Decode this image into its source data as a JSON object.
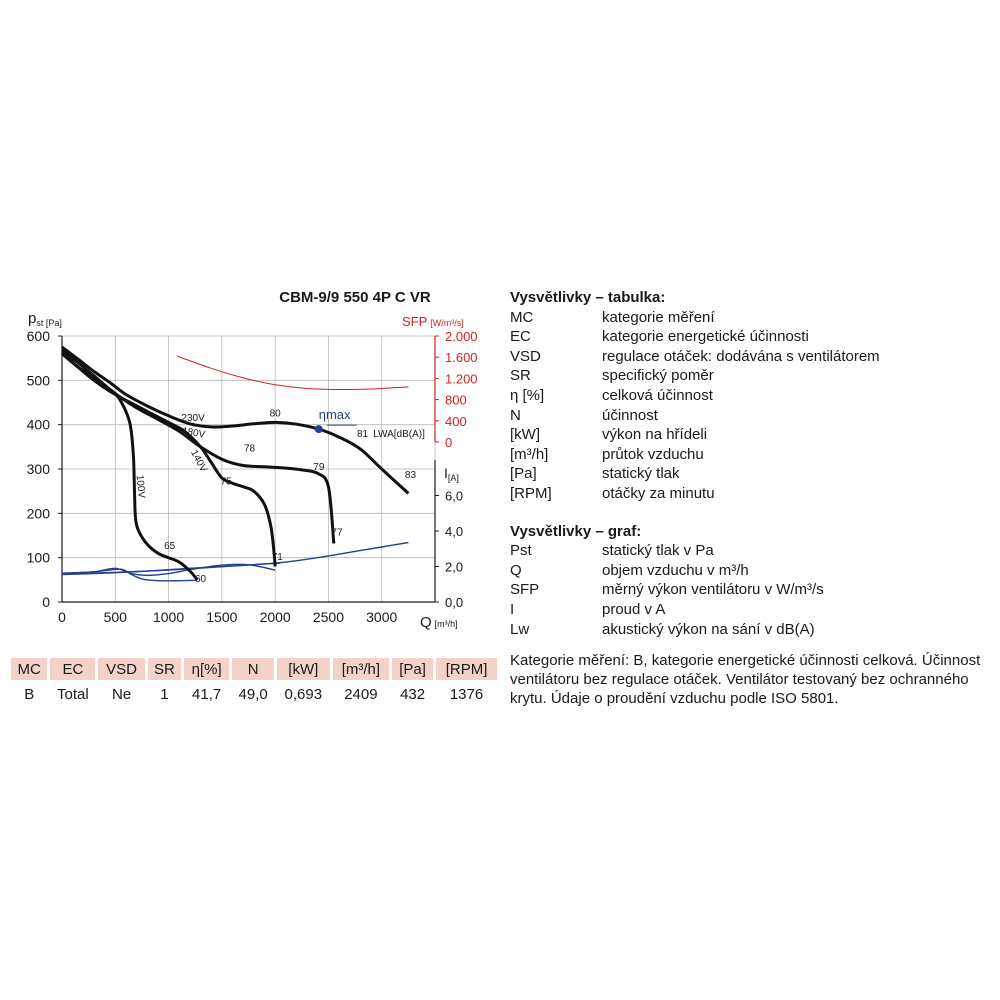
{
  "chart_data": {
    "type": "line",
    "title": "CBM-9/9 550 4P C VR",
    "x_axis": {
      "label": "Q",
      "unit": "[m³/h]",
      "range": [
        0,
        3500
      ],
      "ticks": [
        "0",
        "500",
        "1000",
        "1500",
        "2000",
        "2500",
        "3000"
      ],
      "grid": true
    },
    "y_axis_pressure": {
      "label": "p",
      "label_sub": "st [Pa]",
      "range": [
        0,
        600
      ],
      "ticks": [
        "0",
        "100",
        "200",
        "300",
        "400",
        "500",
        "600"
      ]
    },
    "y_axis_sfp": {
      "label": "SFP",
      "unit": "[W/m³/s]",
      "range": [
        0,
        2000
      ],
      "ticks": [
        "0",
        "400",
        "800",
        "1.200",
        "1.600",
        "2.000"
      ],
      "color": "#d42020"
    },
    "y_axis_current": {
      "label": "I",
      "unit": "[A]",
      "range": [
        0,
        8
      ],
      "ticks": [
        "0,0",
        "2,0",
        "4,0",
        "6,0"
      ]
    },
    "pressure_curves": [
      {
        "name": "230V",
        "color": "#111111",
        "x": [
          0,
          150,
          300,
          450,
          600,
          800,
          1000,
          1200,
          1400,
          1600,
          1800,
          2000,
          2200,
          2409,
          2600,
          2800,
          3000,
          3250
        ],
        "y": [
          575,
          548,
          520,
          495,
          468,
          442,
          420,
          402,
          395,
          397,
          402,
          405,
          401,
          390,
          372,
          345,
          300,
          245
        ]
      },
      {
        "name": "180V",
        "color": "#111111",
        "x": [
          0,
          150,
          300,
          500,
          700,
          900,
          1100,
          1300,
          1500,
          1700,
          1900,
          2100,
          2250,
          2400,
          2500,
          2550
        ],
        "y": [
          568,
          540,
          510,
          470,
          438,
          412,
          385,
          350,
          322,
          308,
          305,
          302,
          298,
          290,
          260,
          132
        ]
      },
      {
        "name": "140V",
        "color": "#111111",
        "x": [
          0,
          150,
          300,
          450,
          600,
          800,
          1000,
          1150,
          1300,
          1400,
          1500,
          1600,
          1700,
          1800,
          1900,
          1960,
          1990,
          2000
        ],
        "y": [
          562,
          530,
          500,
          475,
          455,
          430,
          405,
          385,
          350,
          315,
          280,
          268,
          260,
          250,
          220,
          170,
          110,
          80
        ]
      },
      {
        "name": "100V",
        "color": "#111111",
        "x": [
          0,
          150,
          300,
          400,
          500,
          580,
          640,
          670,
          680,
          690,
          720,
          800,
          900,
          1000,
          1100,
          1200,
          1270
        ],
        "y": [
          560,
          530,
          505,
          485,
          470,
          440,
          400,
          330,
          250,
          190,
          160,
          130,
          110,
          100,
          90,
          70,
          50
        ]
      }
    ],
    "current_curves": [
      {
        "name": "I 230V",
        "color": "#2a3e8f",
        "x": [
          0,
          300,
          600,
          900,
          1200,
          1500,
          1800,
          2100,
          2400,
          2700,
          3000,
          3250
        ],
        "y": [
          1.55,
          1.6,
          1.68,
          1.78,
          1.9,
          2.0,
          2.1,
          2.25,
          2.5,
          2.8,
          3.1,
          3.35
        ]
      },
      {
        "name": "I 180V",
        "color": "#2a3e8f",
        "x": [
          0,
          400,
          700,
          1000,
          1400,
          1800,
          2050
        ],
        "y": [
          1.6,
          1.65,
          1.72,
          1.8,
          1.95,
          2.1,
          2.2
        ]
      },
      {
        "name": "I 140V",
        "color": "#2a3e8f",
        "x": [
          0,
          300,
          500,
          650,
          800,
          1000,
          1200,
          1500,
          1750,
          2000
        ],
        "y": [
          1.62,
          1.7,
          1.9,
          1.6,
          1.5,
          1.6,
          1.82,
          2.08,
          2.1,
          1.8
        ]
      },
      {
        "name": "I 100V",
        "color": "#2a3e8f",
        "x": [
          0,
          300,
          550,
          650,
          750,
          900,
          1100,
          1270
        ],
        "y": [
          1.62,
          1.7,
          1.85,
          1.55,
          1.3,
          1.2,
          1.2,
          1.22
        ]
      }
    ],
    "sfp_curve": {
      "name": "SFP",
      "color": "#d42020",
      "x": [
        1080,
        1400,
        1700,
        2000,
        2300,
        2600,
        2900,
        3250
      ],
      "y": [
        1620,
        1390,
        1210,
        1080,
        1010,
        990,
        1000,
        1040
      ]
    },
    "efficiency_labels": [
      {
        "text": "80",
        "x": 2000,
        "y": 418
      },
      {
        "text": "81",
        "x": 2820,
        "y": 372
      },
      {
        "text": "83",
        "x": 3270,
        "y": 280
      },
      {
        "text": "78",
        "x": 1760,
        "y": 340
      },
      {
        "text": "79",
        "x": 2410,
        "y": 298
      },
      {
        "text": "77",
        "x": 2580,
        "y": 150
      },
      {
        "text": "75",
        "x": 1540,
        "y": 265
      },
      {
        "text": "71",
        "x": 2020,
        "y": 95
      },
      {
        "text": "65",
        "x": 1010,
        "y": 120
      },
      {
        "text": "60",
        "x": 1300,
        "y": 45
      }
    ],
    "voltage_labels": [
      {
        "text": "230V",
        "x": 1230,
        "y": 408,
        "rotate": 0
      },
      {
        "text": "180V",
        "x": 1230,
        "y": 375,
        "rotate": 10
      },
      {
        "text": "140V",
        "x": 1260,
        "y": 315,
        "rotate": 62
      },
      {
        "text": "100V",
        "x": 710,
        "y": 260,
        "rotate": 85
      }
    ],
    "lwa_label": {
      "text": "LWA[dB(A)]",
      "x": 2920,
      "y": 372
    },
    "eta_max": {
      "label": "ηmax",
      "x": 2409,
      "y": 390,
      "color": "#2a3e8f"
    }
  },
  "table": {
    "headers": [
      "MC",
      "EC",
      "VSD",
      "SR",
      "η[%]",
      "N",
      "[kW]",
      "[m³/h]",
      "[Pa]",
      "[RPM]"
    ],
    "row": [
      "B",
      "Total",
      "Ne",
      "1",
      "41,7",
      "49,0",
      "0,693",
      "2409",
      "432",
      "1376"
    ]
  },
  "legend_table": {
    "title": "Vysvětlivky – tabulka:",
    "items": [
      {
        "key": "MC",
        "desc": "kategorie měření"
      },
      {
        "key": "EC",
        "desc": "kategorie energetické účinnosti"
      },
      {
        "key": "VSD",
        "desc": "regulace otáček: dodávána s ventilátorem"
      },
      {
        "key": "SR",
        "desc": "specifický poměr"
      },
      {
        "key": "η [%]",
        "desc": "celková účinnost"
      },
      {
        "key": "N",
        "desc": "účinnost"
      },
      {
        "key": "[kW]",
        "desc": "výkon na hřídeli"
      },
      {
        "key": "[m³/h]",
        "desc": "průtok vzduchu"
      },
      {
        "key": "[Pa]",
        "desc": "statický tlak"
      },
      {
        "key": "[RPM]",
        "desc": "otáčky za minutu"
      }
    ]
  },
  "legend_graph": {
    "title": "Vysvětlivky – graf:",
    "items": [
      {
        "key": "Pst",
        "desc": "statický tlak v Pa"
      },
      {
        "key": "Q",
        "desc": "objem vzduchu v m³/h"
      },
      {
        "key": "SFP",
        "desc": "měrný výkon ventilátoru v W/m³/s"
      },
      {
        "key": "I",
        "desc": "proud v A"
      },
      {
        "key": "Lw",
        "desc": "akustický výkon na sání v dB(A)"
      }
    ]
  },
  "note": "Kategorie měření: B, kategorie energetické účinnosti celková. Účinnost ventilátoru bez regulace otáček. Ventilátor testovaný bez ochranného krytu. Údaje o proudění vzduchu podle ISO 5801."
}
